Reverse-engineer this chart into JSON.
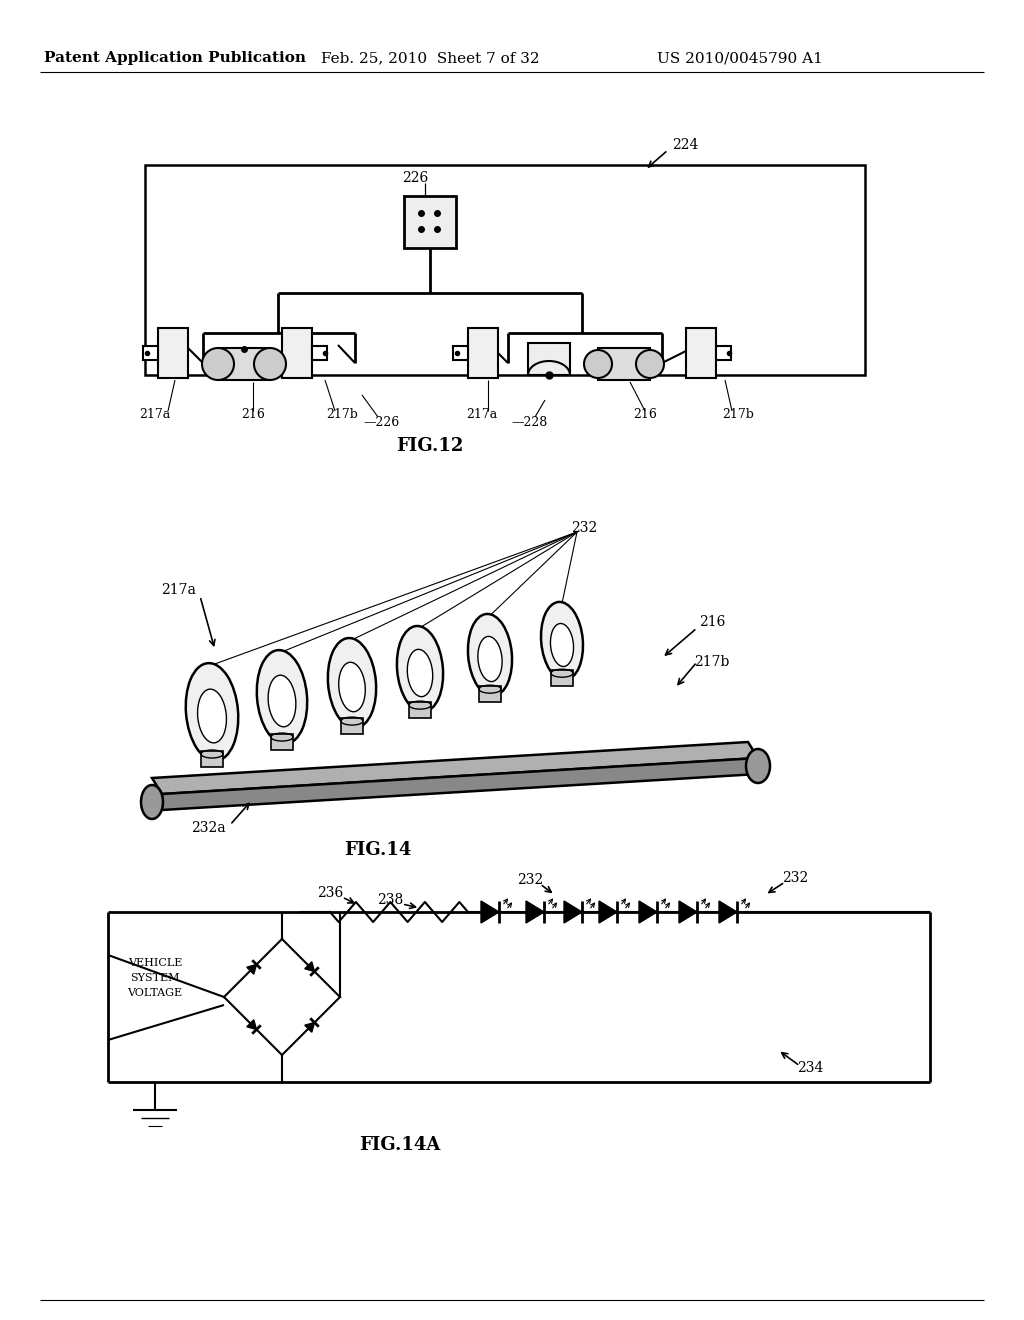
{
  "header_left": "Patent Application Publication",
  "header_mid": "Feb. 25, 2010  Sheet 7 of 32",
  "header_right": "US 2010/0045790 A1",
  "fig12_label": "FIG.12",
  "fig14_label": "FIG.14",
  "fig14a_label": "FIG.14A",
  "background_color": "#ffffff",
  "line_color": "#000000",
  "text_color": "#000000",
  "header_fontsize": 11,
  "label_fontsize": 10,
  "fig_label_fontsize": 13
}
